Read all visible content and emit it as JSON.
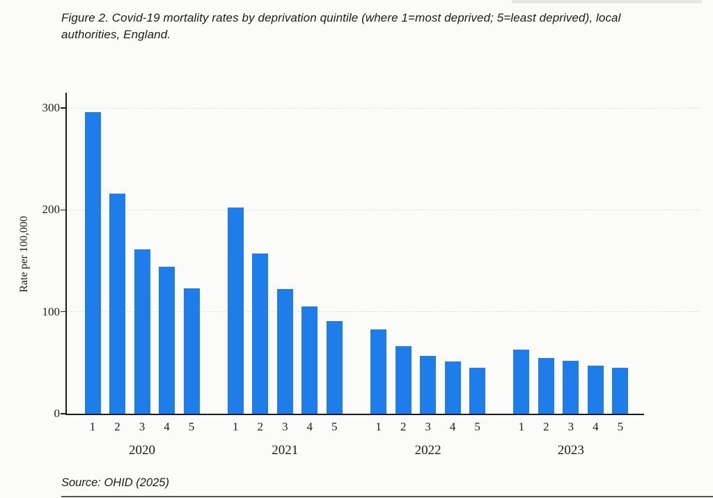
{
  "figure": {
    "title": "Figure 2. Covid-19 mortality rates by deprivation quintile (where 1=most deprived; 5=least deprived), local authorities, England.",
    "source": "Source: OHID (2025)"
  },
  "chart_data": {
    "type": "bar",
    "title": "Figure 2. Covid-19 mortality rates by deprivation quintile (where 1=most deprived; 5=least deprived), local authorities, England.",
    "xlabel": "",
    "ylabel": "Rate per 100,000",
    "ylim": [
      0,
      314
    ],
    "yticks": [
      0,
      100,
      200,
      300
    ],
    "grid": "horizontal dashed gridlines at 100, 200, 300",
    "legend": "none",
    "bar_color": "#1e7de9",
    "quintile_labels": [
      "1",
      "2",
      "3",
      "4",
      "5"
    ],
    "groups": [
      {
        "year": "2020",
        "values": [
          296,
          216,
          161,
          144,
          123
        ]
      },
      {
        "year": "2021",
        "values": [
          202,
          157,
          122,
          105,
          91
        ]
      },
      {
        "year": "2022",
        "values": [
          83,
          66,
          57,
          51,
          45
        ]
      },
      {
        "year": "2023",
        "values": [
          63,
          55,
          52,
          47,
          45
        ]
      }
    ]
  }
}
